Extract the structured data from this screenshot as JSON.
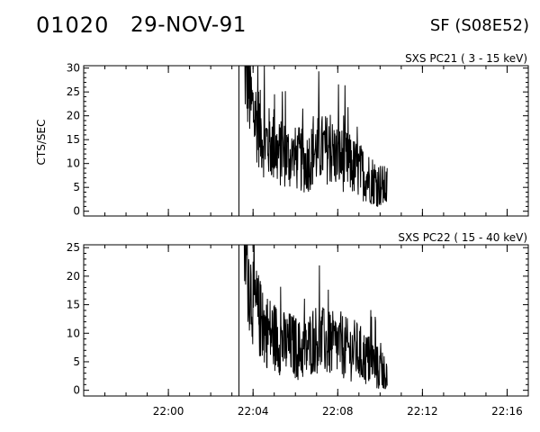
{
  "header": {
    "event_id": "01020",
    "date": "29-NOV-91",
    "region": "SF (S08E52)"
  },
  "colors": {
    "line": "#000000",
    "background": "#ffffff"
  },
  "chart_data": [
    {
      "type": "line",
      "title": "SXS PC21  (  3 - 15 keV)",
      "ylabel": "CTS/SEC",
      "xlabel": "",
      "ylim": [
        -1,
        30.5
      ],
      "yticks": [
        0,
        5,
        10,
        15,
        20,
        25,
        30
      ],
      "ytick_labels": [
        "0",
        "5",
        "10",
        "15",
        "20",
        "25",
        "30"
      ],
      "xlim": [
        "21:56",
        "22:17"
      ],
      "xticks": [
        "22:00",
        "22:04",
        "22:08",
        "22:12",
        "22:16"
      ],
      "xtick_labels": [],
      "marker_line_x": "22:03:20",
      "grid": false,
      "series": [
        {
          "x": [
            "22:03:35",
            "22:03:45",
            "22:03:55",
            "22:04:10",
            "22:04:30",
            "22:04:50",
            "22:05:10",
            "22:05:30",
            "22:05:50",
            "22:06:10",
            "22:06:30",
            "22:06:50",
            "22:07:10",
            "22:07:30",
            "22:07:50",
            "22:08:10",
            "22:08:30",
            "22:08:50",
            "22:09:10",
            "22:09:30",
            "22:09:50",
            "22:10:10",
            "22:10:20"
          ],
          "values": [
            31,
            27,
            22,
            19,
            15,
            14,
            12,
            12,
            11,
            11,
            10,
            12,
            13,
            13,
            12,
            11,
            10,
            9,
            8,
            7,
            6,
            5,
            5
          ]
        }
      ]
    },
    {
      "type": "line",
      "title": "SXS PC22  ( 15 - 40 keV)",
      "ylabel": "",
      "xlabel": "",
      "ylim": [
        -1,
        25.5
      ],
      "yticks": [
        0,
        5,
        10,
        15,
        20,
        25
      ],
      "ytick_labels": [
        "0",
        "5",
        "10",
        "15",
        "20",
        "25"
      ],
      "xlim": [
        "21:56",
        "22:17"
      ],
      "xticks": [
        "22:00",
        "22:04",
        "22:08",
        "22:12",
        "22:16"
      ],
      "xtick_labels": [
        "22:00",
        "22:04",
        "22:08",
        "22:12",
        "22:16"
      ],
      "marker_line_x": "22:03:20",
      "grid": false,
      "series": [
        {
          "x": [
            "22:03:35",
            "22:03:45",
            "22:03:55",
            "22:04:10",
            "22:04:30",
            "22:04:50",
            "22:05:10",
            "22:05:30",
            "22:05:50",
            "22:06:10",
            "22:06:30",
            "22:06:50",
            "22:07:10",
            "22:07:30",
            "22:07:50",
            "22:08:10",
            "22:08:30",
            "22:08:50",
            "22:09:10",
            "22:09:30",
            "22:09:50",
            "22:10:10",
            "22:10:20"
          ],
          "values": [
            26,
            21,
            17,
            14,
            11,
            10,
            9,
            8,
            8,
            7,
            7,
            9,
            9,
            8,
            8,
            8,
            7,
            7,
            6,
            5,
            4,
            3,
            3
          ]
        }
      ]
    }
  ]
}
